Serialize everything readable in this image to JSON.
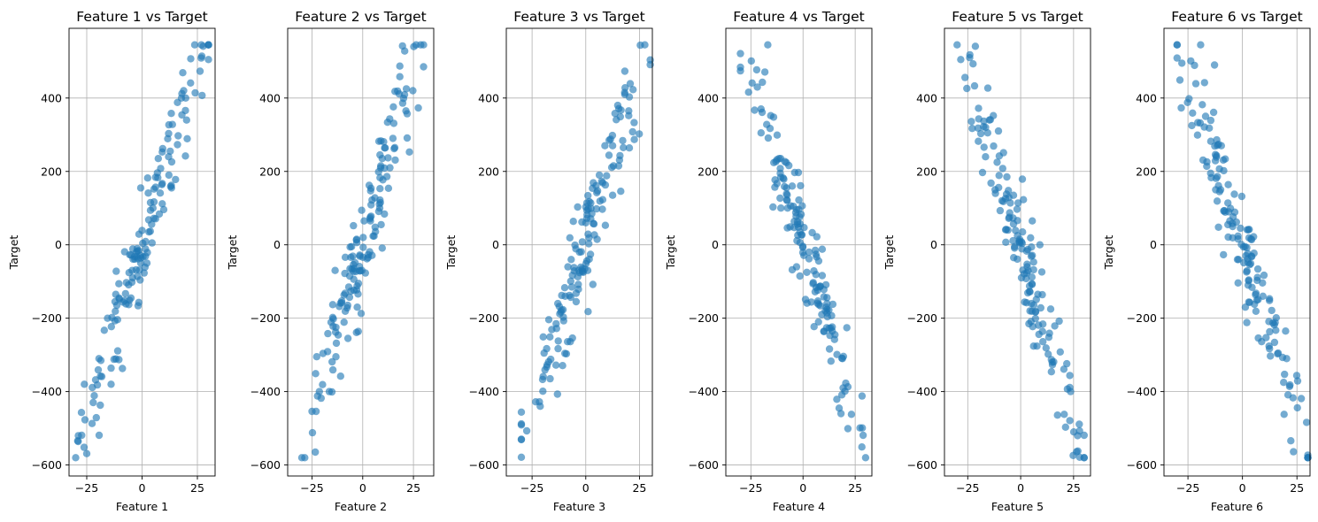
{
  "chart_data": [
    {
      "type": "scatter",
      "title": "Feature 1 vs Target",
      "xlabel": "Feature 1",
      "ylabel": "Target",
      "xlim": [
        -33,
        33
      ],
      "ylim": [
        -630,
        590
      ],
      "xticks": [
        -25,
        0,
        25
      ],
      "yticks": [
        -600,
        -400,
        -200,
        0,
        200,
        400
      ],
      "grid": true,
      "series": [
        {
          "color": "#1f77b4",
          "slope": 18.5,
          "points": []
        }
      ]
    },
    {
      "type": "scatter",
      "title": "Feature 2 vs Target",
      "xlabel": "Feature 2",
      "ylabel": "Target",
      "xlim": [
        -37,
        35
      ],
      "ylim": [
        -630,
        590
      ],
      "xticks": [
        -25,
        0,
        25
      ],
      "yticks": [
        -600,
        -400,
        -200,
        0,
        200,
        400
      ],
      "grid": true,
      "series": [
        {
          "color": "#1f77b4",
          "slope": 18.5,
          "points": []
        }
      ]
    },
    {
      "type": "scatter",
      "title": "Feature 3 vs Target",
      "xlabel": "Feature 3",
      "ylabel": "Target",
      "xlim": [
        -37,
        31
      ],
      "ylim": [
        -630,
        590
      ],
      "xticks": [
        -25,
        0,
        25
      ],
      "yticks": [
        -600,
        -400,
        -200,
        0,
        200,
        400
      ],
      "grid": true,
      "series": [
        {
          "color": "#1f77b4",
          "slope": 18.5,
          "points": []
        }
      ]
    },
    {
      "type": "scatter",
      "title": "Feature 4 vs Target",
      "xlabel": "Feature 4",
      "ylabel": "Target",
      "xlim": [
        -37,
        33
      ],
      "ylim": [
        -630,
        590
      ],
      "xticks": [
        -25,
        0,
        25
      ],
      "yticks": [
        -600,
        -400,
        -200,
        0,
        200,
        400
      ],
      "grid": true,
      "series": [
        {
          "color": "#1f77b4",
          "slope": -18.5,
          "points": []
        }
      ]
    },
    {
      "type": "scatter",
      "title": "Feature 5 vs Target",
      "xlabel": "Feature 5",
      "ylabel": "Target",
      "xlim": [
        -36,
        33
      ],
      "ylim": [
        -630,
        590
      ],
      "xticks": [
        -25,
        0,
        25
      ],
      "yticks": [
        -600,
        -400,
        -200,
        0,
        200,
        400
      ],
      "grid": true,
      "series": [
        {
          "color": "#1f77b4",
          "slope": -18.5,
          "points": []
        }
      ]
    },
    {
      "type": "scatter",
      "title": "Feature 6 vs Target",
      "xlabel": "Feature 6",
      "ylabel": "Target",
      "xlim": [
        -36,
        31
      ],
      "ylim": [
        -630,
        590
      ],
      "xticks": [
        -25,
        0,
        25
      ],
      "yticks": [
        -600,
        -400,
        -200,
        0,
        200,
        400
      ],
      "grid": true,
      "series": [
        {
          "color": "#1f77b4",
          "slope": -18.5,
          "points": []
        }
      ]
    }
  ]
}
